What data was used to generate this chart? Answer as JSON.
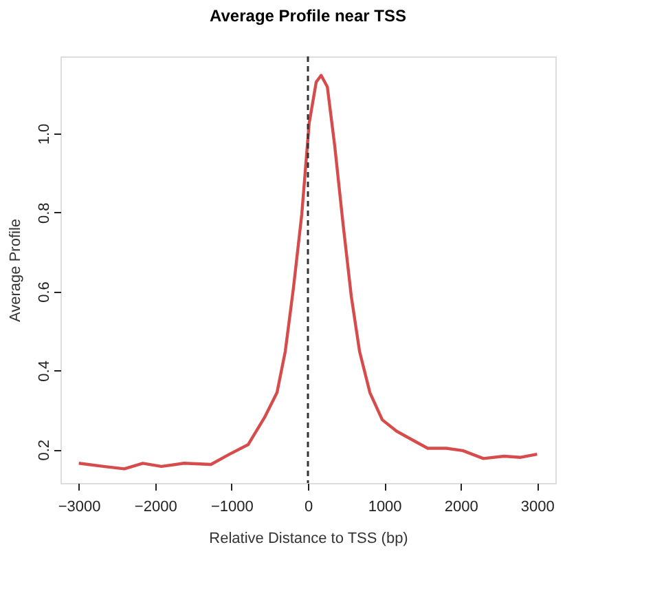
{
  "chart_data": {
    "type": "line",
    "title": "Average Profile near TSS",
    "xlabel": "Relative Distance to TSS (bp)",
    "ylabel": "Average Profile",
    "x": [
      -3000,
      -2676,
      -2405,
      -2162,
      -1919,
      -1622,
      -1270,
      -1027,
      -784,
      -568,
      -405,
      -297,
      -189,
      -81,
      16,
      108,
      173,
      254,
      351,
      459,
      568,
      676,
      811,
      973,
      1162,
      1378,
      1568,
      1811,
      2027,
      2297,
      2568,
      2784,
      3000
    ],
    "series": [
      {
        "color": "#d64b4b",
        "values": [
          0.165,
          0.157,
          0.151,
          0.165,
          0.157,
          0.165,
          0.162,
          0.188,
          0.212,
          0.281,
          0.344,
          0.448,
          0.61,
          0.795,
          1.026,
          1.13,
          1.147,
          1.118,
          0.968,
          0.772,
          0.587,
          0.448,
          0.344,
          0.275,
          0.246,
          0.223,
          0.203,
          0.203,
          0.197,
          0.177,
          0.183,
          0.18,
          0.188
        ]
      }
    ],
    "xlim": [
      -3240,
      3240
    ],
    "ylim": [
      0.115,
      1.195
    ],
    "xticks": [
      -3000,
      -2000,
      -1000,
      0,
      1000,
      2000,
      3000
    ],
    "yticks": [
      0.2,
      0.4,
      0.6,
      0.8,
      {
        "value": 1,
        "label": "1.0"
      }
    ],
    "ref_lines": [
      {
        "axis": "x",
        "value": 0,
        "color": "#333333",
        "line_style": "dashed"
      }
    ],
    "grid": false,
    "marker": "none",
    "line_style": "solid"
  }
}
